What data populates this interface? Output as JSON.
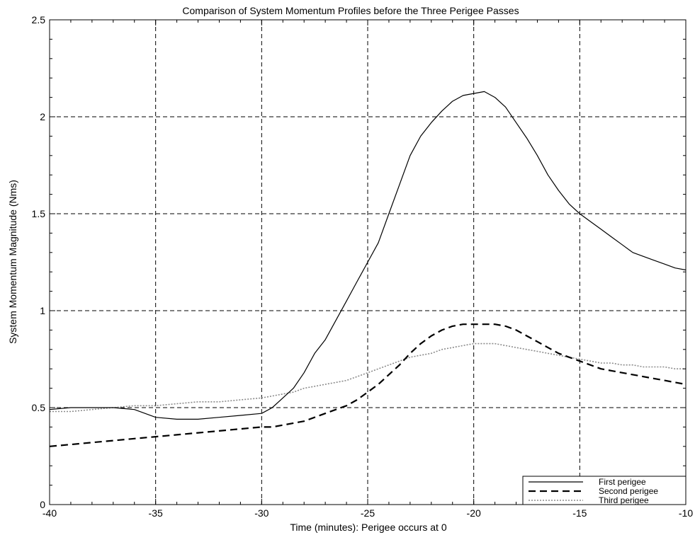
{
  "chart_data": {
    "type": "line",
    "title": "Comparison of System Momentum Profiles before the Three Perigee Passes",
    "xlabel": "Time (minutes): Perigee occurs at 0",
    "ylabel": "System Momentum Magnitude (Nms)",
    "xlim": [
      -40,
      -10
    ],
    "ylim": [
      0,
      2.5
    ],
    "xticks": [
      -40,
      -35,
      -30,
      -25,
      -20,
      -15,
      -10
    ],
    "xtick_labels": [
      "-40",
      "-35",
      "-30",
      "-25",
      "-20",
      "-15",
      "-10"
    ],
    "yticks": [
      0,
      0.5,
      1,
      1.5,
      2,
      2.5
    ],
    "ytick_labels": [
      "0",
      "0.5",
      "1",
      "1.5",
      "2",
      "2.5"
    ],
    "grid": true,
    "legend_position": "bottom-right",
    "series": [
      {
        "name": "First perigee",
        "style": "solid",
        "color": "#000000",
        "x": [
          -40,
          -39,
          -38,
          -37,
          -36,
          -35,
          -34,
          -33,
          -32,
          -31,
          -30,
          -29.5,
          -29,
          -28.5,
          -28,
          -27.5,
          -27,
          -26.5,
          -26,
          -25.5,
          -25,
          -24.5,
          -24,
          -23.5,
          -23,
          -22.5,
          -22,
          -21.5,
          -21,
          -20.5,
          -20,
          -19.5,
          -19,
          -18.5,
          -18,
          -17.5,
          -17,
          -16.5,
          -16,
          -15.5,
          -15,
          -14.5,
          -14,
          -13.5,
          -13,
          -12.5,
          -12,
          -11.5,
          -11,
          -10.5,
          -10
        ],
        "y": [
          0.49,
          0.5,
          0.5,
          0.5,
          0.49,
          0.45,
          0.44,
          0.44,
          0.45,
          0.46,
          0.47,
          0.5,
          0.55,
          0.6,
          0.68,
          0.78,
          0.85,
          0.95,
          1.05,
          1.15,
          1.25,
          1.35,
          1.5,
          1.65,
          1.8,
          1.9,
          1.97,
          2.03,
          2.08,
          2.11,
          2.12,
          2.13,
          2.1,
          2.05,
          1.97,
          1.89,
          1.8,
          1.7,
          1.62,
          1.55,
          1.5,
          1.46,
          1.42,
          1.38,
          1.34,
          1.3,
          1.28,
          1.26,
          1.24,
          1.22,
          1.21
        ]
      },
      {
        "name": "Second perigee",
        "style": "dashed",
        "color": "#000000",
        "x": [
          -40,
          -39,
          -38,
          -37,
          -36,
          -35,
          -34,
          -33,
          -32,
          -31,
          -30,
          -29.5,
          -29,
          -28.5,
          -28,
          -27.5,
          -27,
          -26.5,
          -26,
          -25.5,
          -25,
          -24.5,
          -24,
          -23.5,
          -23,
          -22.5,
          -22,
          -21.5,
          -21,
          -20.5,
          -20,
          -19.5,
          -19,
          -18.5,
          -18,
          -17.5,
          -17,
          -16.5,
          -16,
          -15.5,
          -15,
          -14.5,
          -14,
          -13.5,
          -13,
          -12.5,
          -12,
          -11.5,
          -11,
          -10.5,
          -10
        ],
        "y": [
          0.3,
          0.31,
          0.32,
          0.33,
          0.34,
          0.35,
          0.36,
          0.37,
          0.38,
          0.39,
          0.4,
          0.4,
          0.41,
          0.42,
          0.43,
          0.45,
          0.47,
          0.49,
          0.51,
          0.54,
          0.58,
          0.62,
          0.67,
          0.72,
          0.78,
          0.83,
          0.87,
          0.9,
          0.92,
          0.93,
          0.93,
          0.93,
          0.93,
          0.92,
          0.9,
          0.87,
          0.84,
          0.81,
          0.78,
          0.76,
          0.74,
          0.72,
          0.7,
          0.69,
          0.68,
          0.67,
          0.66,
          0.65,
          0.64,
          0.63,
          0.62
        ]
      },
      {
        "name": "Third perigee",
        "style": "dotted",
        "color": "#8a8a8a",
        "x": [
          -40,
          -39,
          -38,
          -37,
          -36,
          -35,
          -34,
          -33,
          -32,
          -31,
          -30,
          -29.5,
          -29,
          -28.5,
          -28,
          -27.5,
          -27,
          -26.5,
          -26,
          -25.5,
          -25,
          -24.5,
          -24,
          -23.5,
          -23,
          -22.5,
          -22,
          -21.5,
          -21,
          -20.5,
          -20,
          -19.5,
          -19,
          -18.5,
          -18,
          -17.5,
          -17,
          -16.5,
          -16,
          -15.5,
          -15,
          -14.5,
          -14,
          -13.5,
          -13,
          -12.5,
          -12,
          -11.5,
          -11,
          -10.5,
          -10
        ],
        "y": [
          0.48,
          0.48,
          0.49,
          0.5,
          0.51,
          0.51,
          0.52,
          0.53,
          0.53,
          0.54,
          0.55,
          0.56,
          0.57,
          0.58,
          0.6,
          0.61,
          0.62,
          0.63,
          0.64,
          0.66,
          0.68,
          0.7,
          0.72,
          0.74,
          0.76,
          0.77,
          0.78,
          0.8,
          0.81,
          0.82,
          0.83,
          0.83,
          0.83,
          0.82,
          0.81,
          0.8,
          0.79,
          0.78,
          0.77,
          0.76,
          0.75,
          0.74,
          0.73,
          0.73,
          0.72,
          0.72,
          0.71,
          0.71,
          0.71,
          0.7,
          0.7
        ]
      }
    ]
  }
}
